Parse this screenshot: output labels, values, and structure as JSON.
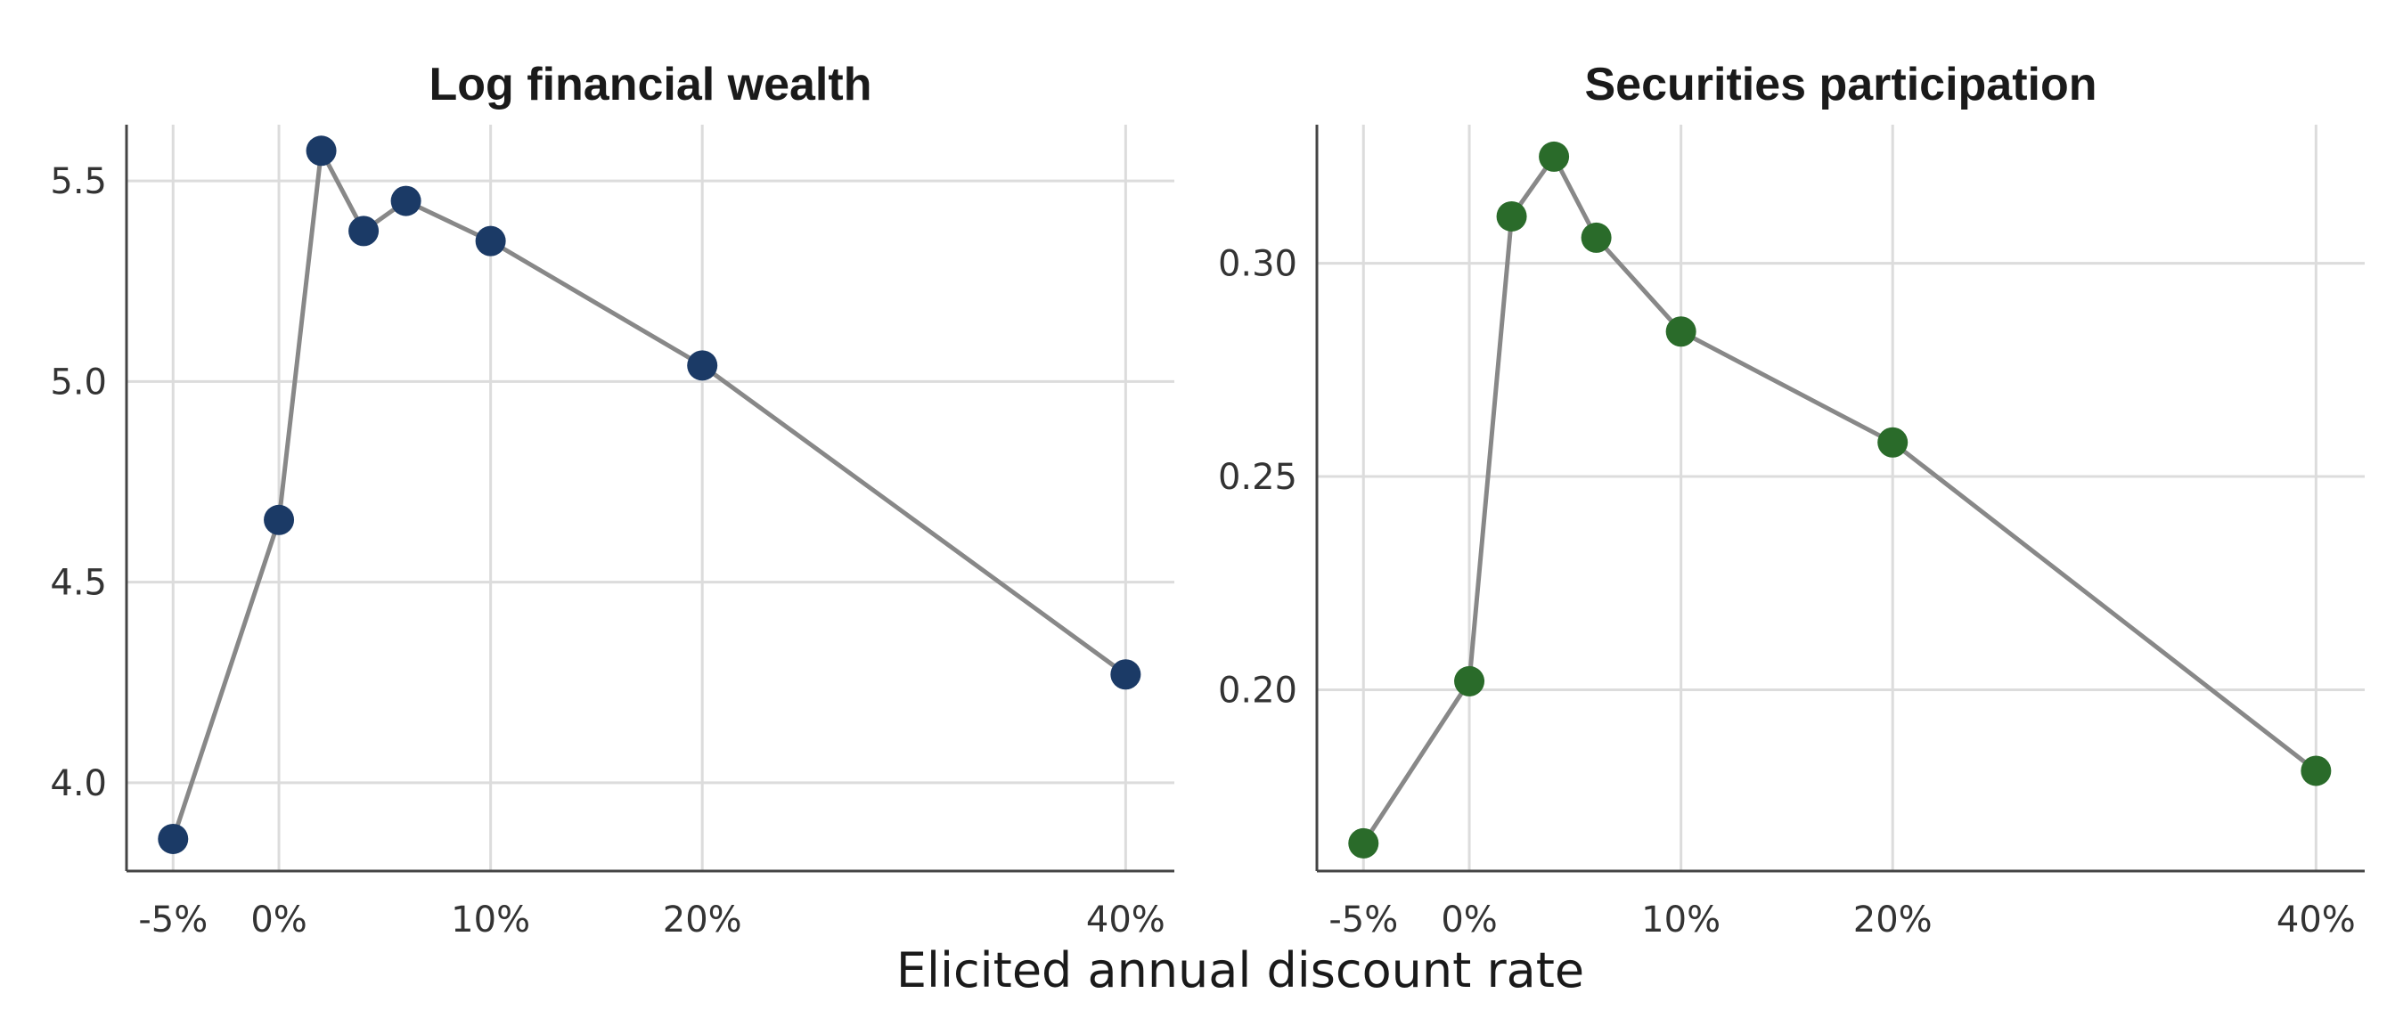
{
  "figure": {
    "xlabel": "Elicited annual discount rate"
  },
  "chart_data": [
    {
      "type": "line",
      "title": "Log financial wealth",
      "x": [
        -5,
        0,
        2,
        4,
        6,
        10,
        20,
        40
      ],
      "y": [
        3.86,
        4.655,
        5.575,
        5.375,
        5.45,
        5.35,
        5.04,
        4.27
      ],
      "xticks": [
        -5,
        0,
        10,
        20,
        40
      ],
      "xtick_labels": [
        "-5%",
        "0%",
        "10%",
        "20%",
        "40%"
      ],
      "yticks": [
        4.0,
        4.5,
        5.0,
        5.5
      ],
      "ytick_labels": [
        "4.0",
        "4.5",
        "5.0",
        "5.5"
      ],
      "xlim": [
        -7.2,
        42.3
      ],
      "ylim": [
        3.78,
        5.64
      ],
      "grid": true,
      "marker_color": "#1b3a66",
      "line_color": "#888888"
    },
    {
      "type": "line",
      "title": "Securities participation",
      "x": [
        -5,
        0,
        2,
        4,
        6,
        10,
        20,
        40
      ],
      "y": [
        0.164,
        0.202,
        0.311,
        0.325,
        0.306,
        0.284,
        0.258,
        0.181
      ],
      "xticks": [
        -5,
        0,
        10,
        20,
        40
      ],
      "xtick_labels": [
        "-5%",
        "0%",
        "10%",
        "20%",
        "40%"
      ],
      "yticks": [
        0.2,
        0.25,
        0.3
      ],
      "ytick_labels": [
        "0.20",
        "0.25",
        "0.30"
      ],
      "xlim": [
        -7.2,
        42.3
      ],
      "ylim": [
        0.1575,
        0.3325
      ],
      "grid": true,
      "marker_color": "#2a6b2a",
      "line_color": "#888888"
    }
  ]
}
